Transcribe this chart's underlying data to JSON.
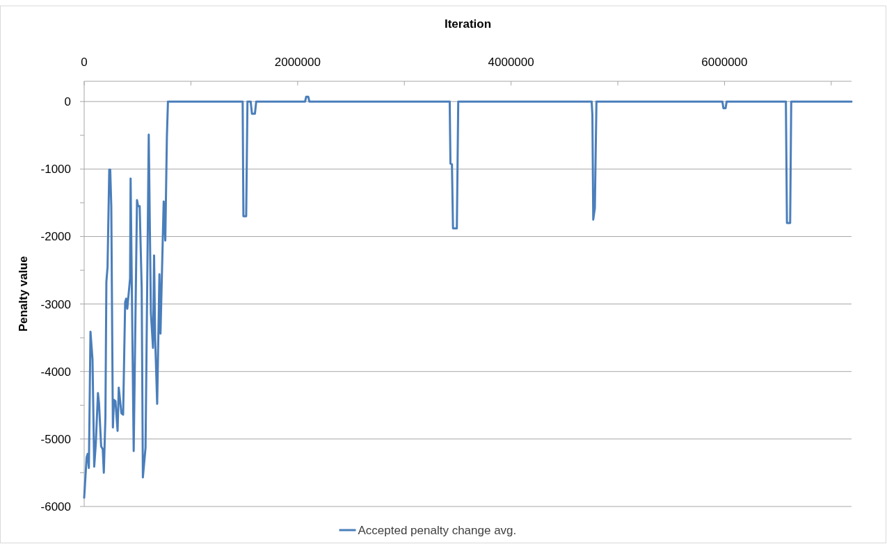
{
  "chart_data": {
    "type": "line",
    "xlabel": "Iteration",
    "ylabel": "Penalty value",
    "xlim": [
      0,
      7190000
    ],
    "xticks": [
      0,
      {
        "value": 1000000,
        "label": null
      },
      2000000,
      {
        "value": 3000000,
        "label": null
      },
      4000000,
      {
        "value": 5000000,
        "label": null
      },
      6000000,
      {
        "value": 7000000,
        "label": null
      }
    ],
    "ylim": [
      -6000,
      300
    ],
    "yticks": [
      -6000,
      {
        "value": -5500,
        "label": null
      },
      -5000,
      {
        "value": -4500,
        "label": null
      },
      -4000,
      {
        "value": -3500,
        "label": null
      },
      -3000,
      {
        "value": -2500,
        "label": null
      },
      -2000,
      {
        "value": -1500,
        "label": null
      },
      -1000,
      {
        "value": -500,
        "label": null
      },
      0
    ],
    "grid": "y",
    "legend": "bottom",
    "line_style": "solid",
    "marker": "none",
    "series": [
      {
        "name": "Accepted penalty change avg.",
        "color": "#4a7ebb",
        "x": [
          0,
          23000,
          33000,
          44000,
          59000,
          78000,
          94000,
          109000,
          129000,
          139000,
          159000,
          174000,
          184000,
          199000,
          208000,
          219000,
          235000,
          244000,
          254000,
          269000,
          279000,
          293000,
          313000,
          324000,
          349000,
          365000,
          384000,
          394000,
          404000,
          430000,
          435000,
          464000,
          495000,
          505000,
          520000,
          539000,
          550000,
          575000,
          605000,
          625000,
          645000,
          655000,
          665000,
          684000,
          705000,
          715000,
          745000,
          760000,
          775000,
          785000,
          1485000,
          1492000,
          1518000,
          1530000,
          1560000,
          1572000,
          1600000,
          1612000,
          2070000,
          2080000,
          2100000,
          2110000,
          3425000,
          3432000,
          3446000,
          3456000,
          3492000,
          3505000,
          4755000,
          4762000,
          4770000,
          4785000,
          4800000,
          5980000,
          5990000,
          6010000,
          6020000,
          6575000,
          6585000,
          6615000,
          6625000,
          7190000
        ],
        "values": [
          -5870,
          -5270,
          -5220,
          -5430,
          -3410,
          -3820,
          -5410,
          -5070,
          -4320,
          -4470,
          -5110,
          -5150,
          -5500,
          -4680,
          -2670,
          -2450,
          -1010,
          -1010,
          -1550,
          -4830,
          -4420,
          -4440,
          -4880,
          -4240,
          -4620,
          -4640,
          -2970,
          -2920,
          -3070,
          -2620,
          -1140,
          -5180,
          -1460,
          -1550,
          -1550,
          -2770,
          -5570,
          -5130,
          -490,
          -3130,
          -3650,
          -2280,
          -3500,
          -4480,
          -2560,
          -3440,
          -1480,
          -2060,
          -520,
          0,
          0,
          -1700,
          -1700,
          0,
          0,
          -180,
          -180,
          0,
          0,
          70,
          70,
          0,
          0,
          -920,
          -930,
          -1880,
          -1880,
          0,
          0,
          -200,
          -1750,
          -1580,
          0,
          0,
          -100,
          -100,
          0,
          0,
          -1800,
          -1800,
          0,
          0
        ]
      }
    ]
  }
}
